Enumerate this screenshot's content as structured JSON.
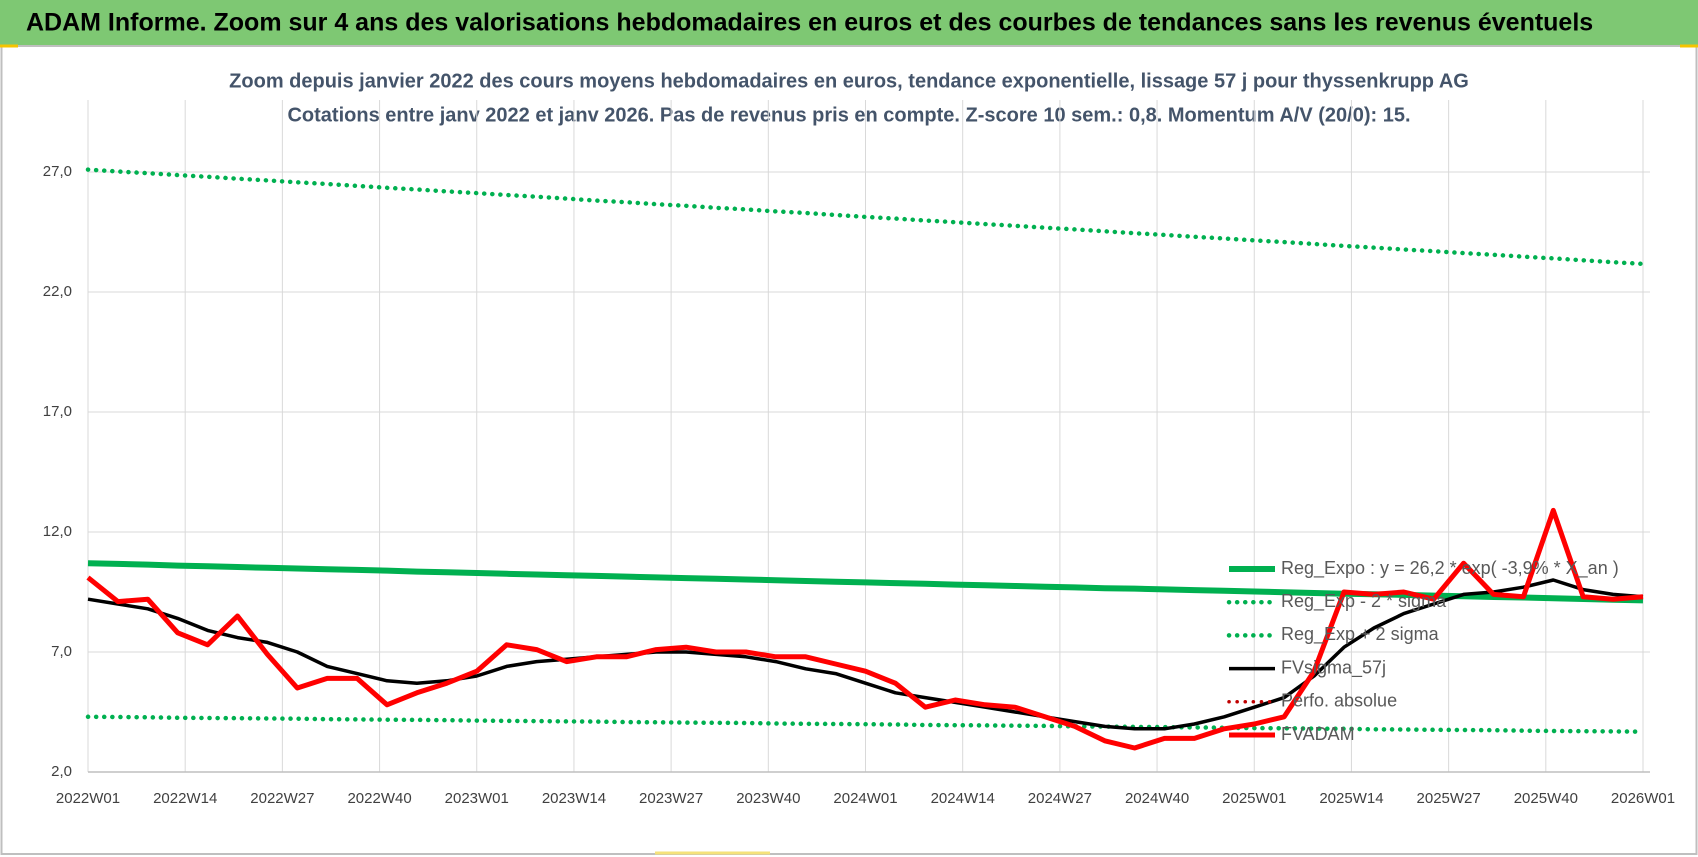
{
  "header": {
    "title": "ADAM Informe. Zoom sur 4 ans des valorisations hebdomadaires en euros et des courbes de tendances sans les revenus éventuels"
  },
  "chart_data": {
    "type": "line",
    "title": "Zoom depuis janvier 2022 des cours moyens hebdomadaires en euros, tendance exponentielle, lissage 57 j pour thyssenkrupp AG",
    "subtitle": "Cotations entre janv 2022 et janv 2026. Pas de revenus pris en compte. Z-score 10 sem.: 0,8. Momentum A/V (20/0):  15.",
    "x": [
      0,
      4,
      8,
      12,
      16,
      20,
      24,
      28,
      32,
      36,
      40,
      44,
      48,
      52,
      56,
      60,
      64,
      68,
      72,
      76,
      80,
      84,
      88,
      92,
      96,
      100,
      104,
      108,
      112,
      116,
      120,
      124,
      128,
      132,
      136,
      140,
      144,
      148,
      152,
      156,
      160,
      164,
      168,
      172,
      176,
      180,
      184,
      188,
      192,
      196,
      200,
      204,
      208
    ],
    "xlim": [
      0,
      208
    ],
    "xticks": [
      {
        "value": 0,
        "label": "2022W01"
      },
      {
        "value": 13,
        "label": "2022W14"
      },
      {
        "value": 26,
        "label": "2022W27"
      },
      {
        "value": 39,
        "label": "2022W40"
      },
      {
        "value": 52,
        "label": "2023W01"
      },
      {
        "value": 65,
        "label": "2023W14"
      },
      {
        "value": 78,
        "label": "2023W27"
      },
      {
        "value": 91,
        "label": "2023W40"
      },
      {
        "value": 104,
        "label": "2024W01"
      },
      {
        "value": 117,
        "label": "2024W14"
      },
      {
        "value": 130,
        "label": "2024W27"
      },
      {
        "value": 143,
        "label": "2024W40"
      },
      {
        "value": 156,
        "label": "2025W01"
      },
      {
        "value": 169,
        "label": "2025W14"
      },
      {
        "value": 182,
        "label": "2025W27"
      },
      {
        "value": 195,
        "label": "2025W40"
      },
      {
        "value": 208,
        "label": "2026W01"
      }
    ],
    "ylim": [
      2,
      30
    ],
    "yticks": [
      {
        "value": 2,
        "label": "2,0"
      },
      {
        "value": 7,
        "label": "7,0"
      },
      {
        "value": 12,
        "label": "12,0"
      },
      {
        "value": 17,
        "label": "17,0"
      },
      {
        "value": 22,
        "label": "22,0"
      },
      {
        "value": 27,
        "label": "27,0"
      }
    ],
    "grid": true,
    "legend": "right",
    "series": [
      {
        "name": "Reg_Expo : y = 26,2 * exp( -3,9% * X_an )",
        "color": "#00b050",
        "style": "solid",
        "values": [
          10.7,
          10.67,
          10.64,
          10.6,
          10.57,
          10.54,
          10.51,
          10.48,
          10.45,
          10.42,
          10.39,
          10.35,
          10.32,
          10.29,
          10.26,
          10.23,
          10.2,
          10.17,
          10.14,
          10.11,
          10.08,
          10.05,
          10.02,
          9.99,
          9.96,
          9.93,
          9.9,
          9.87,
          9.84,
          9.81,
          9.78,
          9.75,
          9.72,
          9.69,
          9.66,
          9.64,
          9.61,
          9.58,
          9.55,
          9.52,
          9.49,
          9.46,
          9.43,
          9.41,
          9.38,
          9.35,
          9.32,
          9.29,
          9.27,
          9.24,
          9.21,
          9.18,
          9.15
        ]
      },
      {
        "name": "Reg_Exp - 2 * sigma",
        "color": "#00b050",
        "style": "dotted",
        "values": [
          4.3,
          4.29,
          4.28,
          4.26,
          4.25,
          4.24,
          4.23,
          4.22,
          4.2,
          4.19,
          4.18,
          4.17,
          4.16,
          4.14,
          4.13,
          4.12,
          4.11,
          4.1,
          4.08,
          4.07,
          4.06,
          4.05,
          4.04,
          4.02,
          4.01,
          4.0,
          3.99,
          3.98,
          3.96,
          3.95,
          3.94,
          3.93,
          3.92,
          3.9,
          3.89,
          3.88,
          3.87,
          3.86,
          3.84,
          3.83,
          3.82,
          3.81,
          3.8,
          3.78,
          3.77,
          3.76,
          3.75,
          3.74,
          3.72,
          3.71,
          3.7,
          3.69,
          3.68
        ]
      },
      {
        "name": "Reg_Exp + 2 sigma",
        "color": "#00b050",
        "style": "dotted",
        "values": [
          27.1,
          27.02,
          26.95,
          26.87,
          26.8,
          26.72,
          26.65,
          26.57,
          26.5,
          26.42,
          26.34,
          26.27,
          26.19,
          26.12,
          26.04,
          25.97,
          25.89,
          25.81,
          25.74,
          25.66,
          25.59,
          25.51,
          25.44,
          25.36,
          25.29,
          25.21,
          25.13,
          25.06,
          24.98,
          24.91,
          24.83,
          24.76,
          24.68,
          24.61,
          24.53,
          24.45,
          24.38,
          24.3,
          24.23,
          24.15,
          24.08,
          24.0,
          23.92,
          23.85,
          23.77,
          23.7,
          23.62,
          23.55,
          23.47,
          23.4,
          23.32,
          23.24,
          23.17
        ]
      },
      {
        "name": "FVsigma_57j",
        "color": "#000000",
        "style": "solid",
        "values": [
          9.2,
          9.0,
          8.8,
          8.4,
          7.9,
          7.6,
          7.4,
          7.0,
          6.4,
          6.1,
          5.8,
          5.7,
          5.8,
          6.0,
          6.4,
          6.6,
          6.7,
          6.8,
          6.9,
          7.0,
          7.0,
          6.9,
          6.8,
          6.6,
          6.3,
          6.1,
          5.7,
          5.3,
          5.1,
          4.9,
          4.7,
          4.5,
          4.3,
          4.1,
          3.9,
          3.8,
          3.8,
          4.0,
          4.3,
          4.7,
          5.1,
          6.0,
          7.2,
          8.0,
          8.6,
          9.0,
          9.4,
          9.5,
          9.7,
          10.0,
          9.6,
          9.4,
          9.3
        ]
      },
      {
        "name": "Perfo. absolue",
        "color": "#c00000",
        "style": "dotted"
      },
      {
        "name": "FVADAM",
        "color": "#ff0000",
        "style": "solid",
        "values": [
          10.1,
          9.1,
          9.2,
          7.8,
          7.3,
          8.5,
          6.9,
          5.5,
          5.9,
          5.9,
          4.8,
          5.3,
          5.7,
          6.2,
          7.3,
          7.1,
          6.6,
          6.8,
          6.8,
          7.1,
          7.2,
          7.0,
          7.0,
          6.8,
          6.8,
          6.5,
          6.2,
          5.7,
          4.7,
          5.0,
          4.8,
          4.7,
          4.3,
          3.9,
          3.3,
          3.0,
          3.4,
          3.4,
          3.8,
          4.0,
          4.3,
          6.2,
          9.5,
          9.4,
          9.5,
          9.2,
          10.7,
          9.4,
          9.3,
          12.9,
          9.3,
          9.2,
          9.3
        ]
      }
    ]
  }
}
